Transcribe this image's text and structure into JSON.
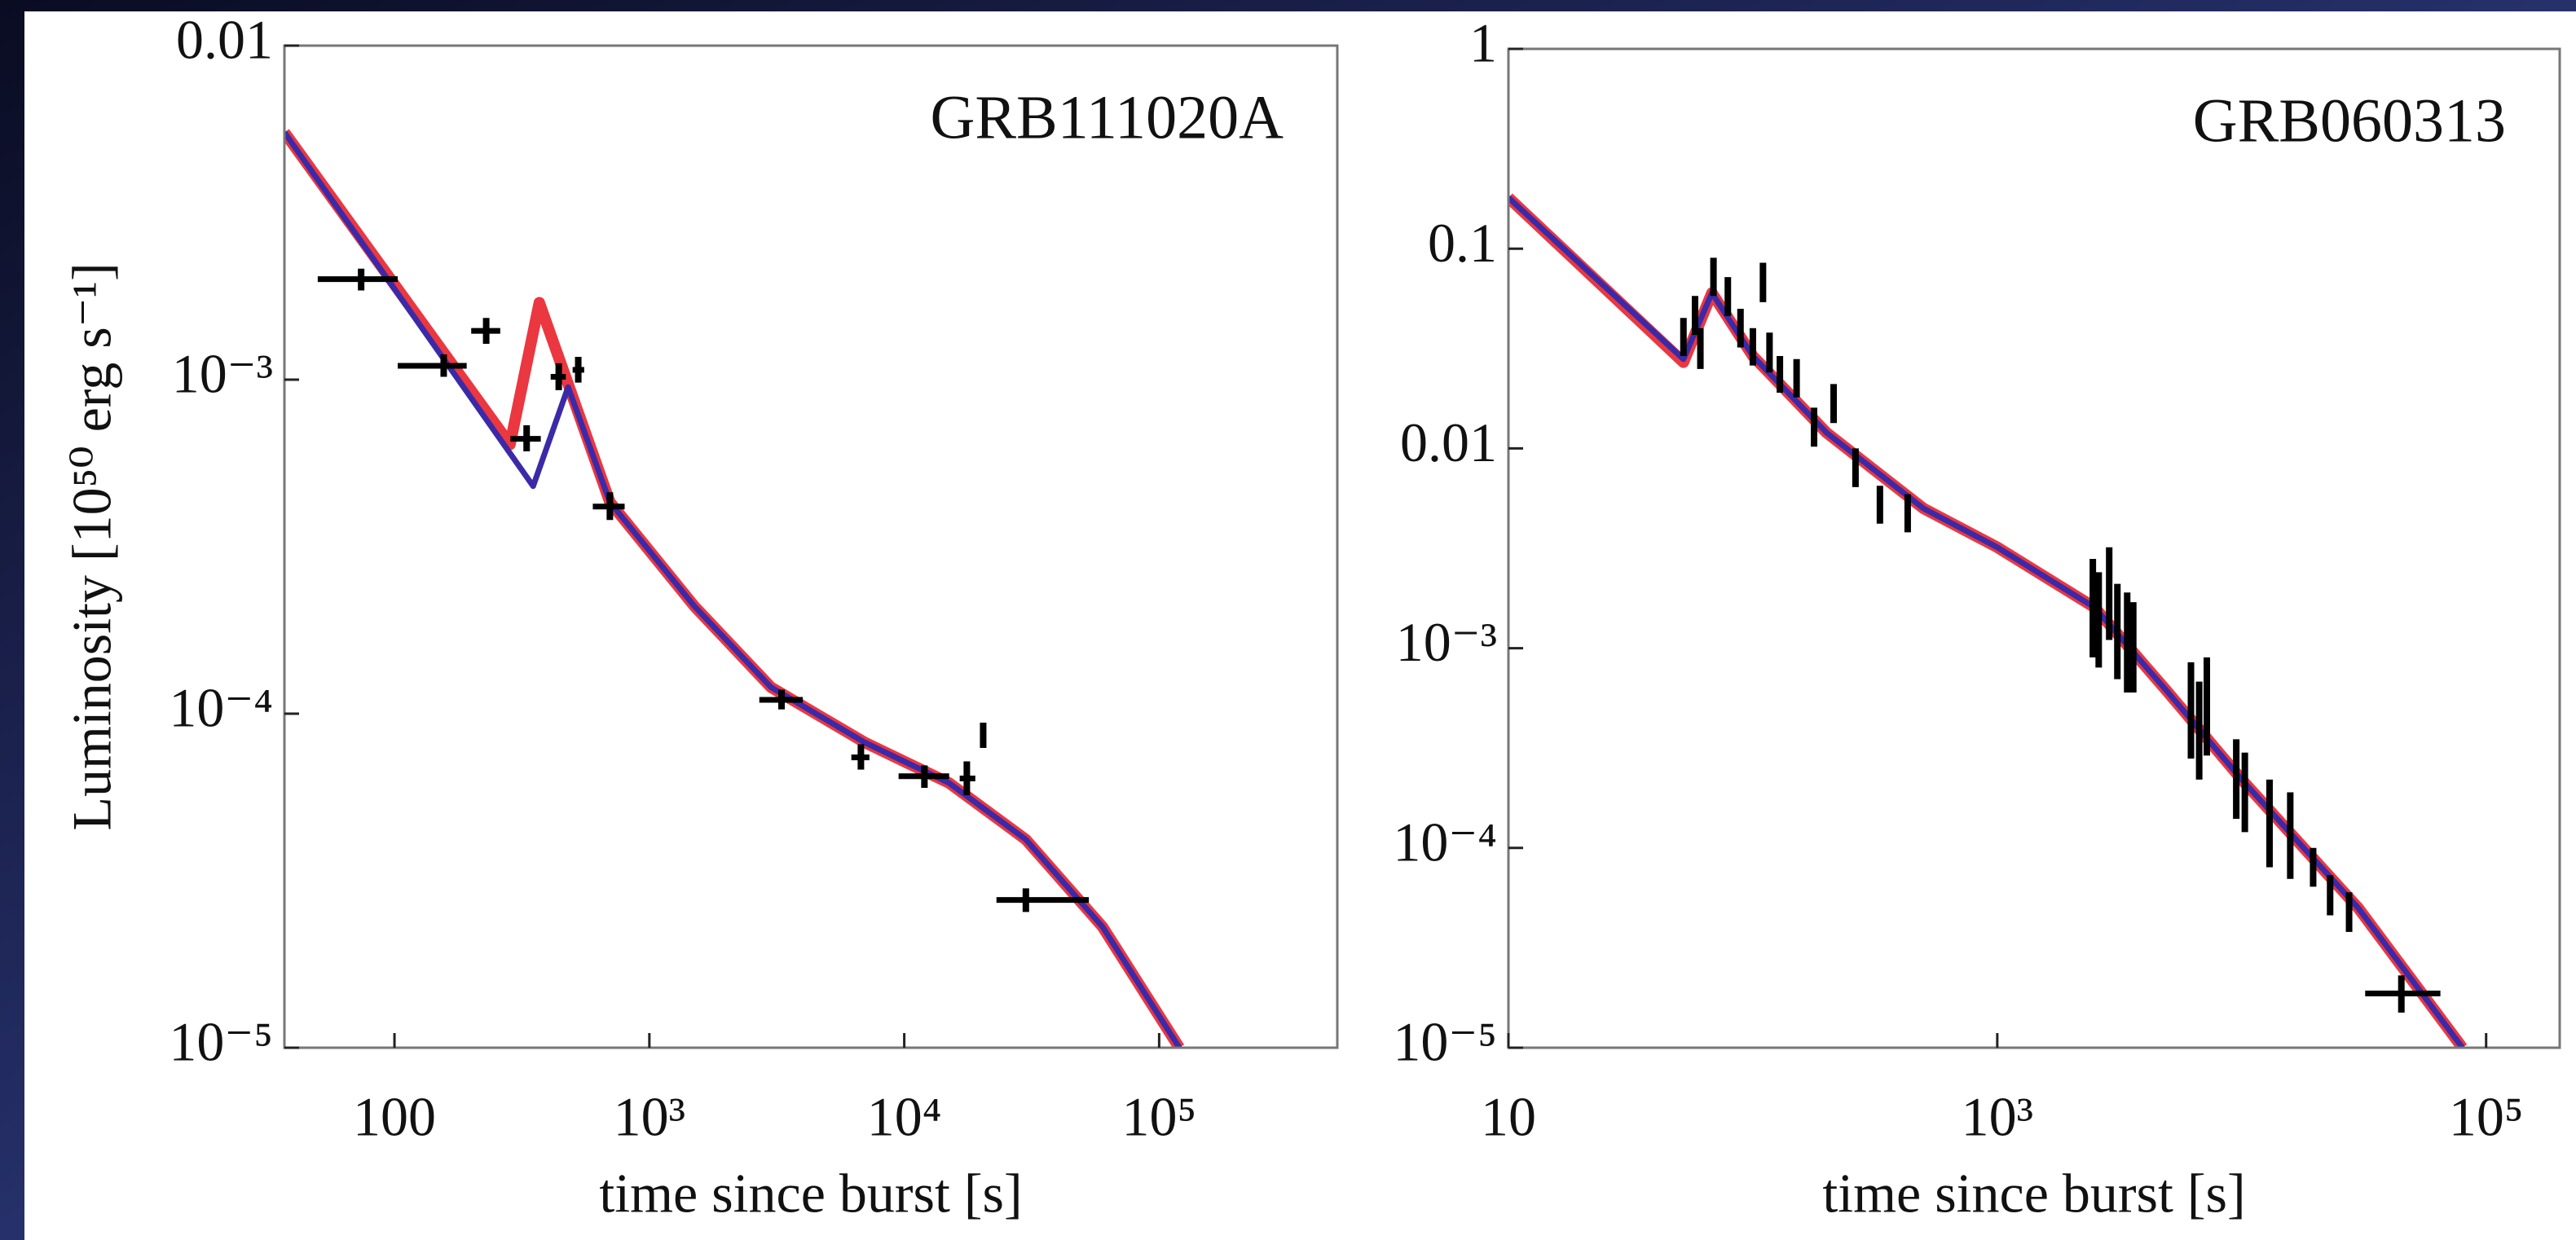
{
  "chart_data": [
    {
      "type": "scatter",
      "annotation": "GRB111020A",
      "x_label": "time since burst [s]",
      "y_label": "Luminosity [10⁵⁰ erg s⁻¹]",
      "log_x": true,
      "log_y": true,
      "xlim": [
        37,
        500000
      ],
      "ylim": [
        1e-05,
        0.01
      ],
      "xticks": [
        100,
        {
          "value": 1000,
          "label": "10³"
        },
        {
          "value": 10000,
          "label": "10⁴"
        },
        {
          "value": 100000,
          "label": "10⁵"
        }
      ],
      "yticks": [
        {
          "value": 1e-05,
          "label": "10⁻⁵"
        },
        {
          "value": 0.0001,
          "label": "10⁻⁴"
        },
        {
          "value": 0.001,
          "label": "10⁻³"
        },
        0.01
      ],
      "model": [
        {
          "color": "#e8141e",
          "x": [
            37,
            284,
            370,
            700,
            1500,
            3000,
            7000,
            15000,
            30000,
            60000,
            120000
          ],
          "values": [
            0.0055,
            0.00064,
            0.0017,
            0.00043,
            0.00021,
            0.00012,
            8.2e-05,
            6.2e-05,
            4.2e-05,
            2.3e-05,
            1e-05
          ]
        },
        {
          "color": "#3b2aa8",
          "x": [
            37,
            350,
            480,
            700,
            1500,
            3000,
            7000,
            15000,
            30000,
            60000,
            120000
          ],
          "values": [
            0.0055,
            0.00048,
            0.00095,
            0.00043,
            0.00021,
            0.00012,
            8.2e-05,
            6.2e-05,
            4.2e-05,
            2.3e-05,
            1e-05
          ]
        }
      ],
      "points": {
        "color": "#000000",
        "x": [
          74,
          156,
          229,
          330,
          441,
          526,
          700,
          3300,
          6760,
          12000,
          17600,
          20400,
          30000
        ],
        "values": [
          0.002,
          0.0011,
          0.0014,
          0.000665,
          0.00102,
          0.00107,
          0.000417,
          0.00011,
          7.4e-05,
          6.5e-05,
          6.4e-05,
          8.6e-05,
          2.77e-05
        ],
        "x_low": [
          50,
          103,
          200,
          285,
          410,
          500,
          600,
          2700,
          6200,
          9500,
          16500,
          null,
          23000
        ],
        "x_high": [
          103,
          192,
          260,
          375,
          470,
          555,
          800,
          4000,
          7300,
          15000,
          19000,
          null,
          53000
        ],
        "y_low": [
          0.00185,
          0.00102,
          0.00128,
          0.00061,
          0.00093,
          0.00098,
          0.00038,
          0.000103,
          6.8e-05,
          6e-05,
          5.7e-05,
          7.9e-05,
          2.55e-05
        ],
        "y_high": [
          0.00215,
          0.00119,
          0.00153,
          0.00073,
          0.00112,
          0.00117,
          0.00046,
          0.000118,
          8.1e-05,
          7e-05,
          7.2e-05,
          9.4e-05,
          3e-05
        ]
      }
    },
    {
      "type": "scatter",
      "annotation": "GRB060313",
      "x_label": "time since burst [s]",
      "log_x": true,
      "log_y": true,
      "xlim": [
        10,
        200000
      ],
      "ylim": [
        1e-05,
        1
      ],
      "xticks": [
        10,
        {
          "value": 1000,
          "label": "10³"
        },
        {
          "value": 100000,
          "label": "10⁵"
        }
      ],
      "yticks": [
        {
          "value": 1e-05,
          "label": "10⁻⁵"
        },
        {
          "value": 0.0001,
          "label": "10⁻⁴"
        },
        {
          "value": 0.001,
          "label": "10⁻³"
        },
        0.01,
        0.1,
        1
      ],
      "model": [
        {
          "color": "#e8141e",
          "x": [
            10,
            52,
            68,
            100,
            200,
            500,
            1000,
            2500,
            5000,
            10000,
            30000,
            80000
          ],
          "values": [
            0.18,
            0.027,
            0.06,
            0.029,
            0.012,
            0.005,
            0.0032,
            0.0016,
            0.0006,
            0.00022,
            5e-05,
            1e-05
          ]
        },
        {
          "color": "#3b2aa8",
          "x": [
            10,
            52,
            68,
            100,
            200,
            500,
            1000,
            2500,
            5000,
            10000,
            30000,
            80000
          ],
          "values": [
            0.18,
            0.028,
            0.06,
            0.029,
            0.012,
            0.005,
            0.0032,
            0.0016,
            0.0006,
            0.00022,
            5e-05,
            1e-05
          ]
        }
      ],
      "points": {
        "color": "#000000",
        "x": [
          52,
          58,
          61,
          69,
          79,
          89,
          100,
          110,
          117,
          129,
          151,
          178,
          214,
          263,
          331,
          430,
          2460,
          2600,
          2870,
          3100,
          3400,
          3600,
          6200,
          6700,
          7200,
          9500,
          10300,
          13000,
          15800,
          19600,
          23000,
          27500,
          45000
        ],
        "values": [
          0.036,
          0.046,
          0.032,
          0.072,
          0.058,
          0.04,
          0.032,
          0.068,
          0.03,
          0.0235,
          0.0226,
          0.0128,
          0.0167,
          0.008,
          0.0052,
          0.0047,
          0.0016,
          0.0014,
          0.0019,
          0.0012,
          0.0011,
          0.001,
          0.00049,
          0.00039,
          0.00051,
          0.00022,
          0.00019,
          0.00013,
          0.00011,
          8e-05,
          5.8e-05,
          4.8e-05,
          1.87e-05
        ],
        "x_low": [
          null,
          null,
          null,
          null,
          null,
          null,
          null,
          null,
          null,
          null,
          null,
          null,
          null,
          null,
          null,
          null,
          null,
          null,
          null,
          null,
          null,
          null,
          null,
          null,
          null,
          null,
          null,
          null,
          null,
          null,
          null,
          null,
          32000
        ],
        "x_high": [
          null,
          null,
          null,
          null,
          null,
          null,
          null,
          null,
          null,
          null,
          null,
          null,
          null,
          null,
          null,
          null,
          null,
          null,
          null,
          null,
          null,
          null,
          null,
          null,
          null,
          null,
          null,
          null,
          null,
          null,
          null,
          null,
          65000
        ],
        "y_low": [
          0.029,
          0.037,
          0.025,
          0.058,
          0.046,
          0.032,
          0.026,
          0.054,
          0.024,
          0.019,
          0.018,
          0.0102,
          0.0134,
          0.0064,
          0.0042,
          0.0038,
          0.0009,
          0.0008,
          0.0011,
          0.0007,
          0.0006,
          0.0006,
          0.00028,
          0.00022,
          0.00029,
          0.00014,
          0.00012,
          8e-05,
          7e-05,
          6.4e-05,
          4.6e-05,
          3.8e-05,
          1.5e-05
        ],
        "y_high": [
          0.045,
          0.058,
          0.04,
          0.09,
          0.072,
          0.05,
          0.04,
          0.085,
          0.038,
          0.029,
          0.028,
          0.016,
          0.021,
          0.01,
          0.0065,
          0.0059,
          0.0028,
          0.0024,
          0.0032,
          0.0021,
          0.0019,
          0.0017,
          0.00085,
          0.00068,
          0.0009,
          0.00035,
          0.0003,
          0.00022,
          0.00019,
          0.0001,
          7.3e-05,
          6e-05,
          2.3e-05
        ]
      }
    }
  ]
}
